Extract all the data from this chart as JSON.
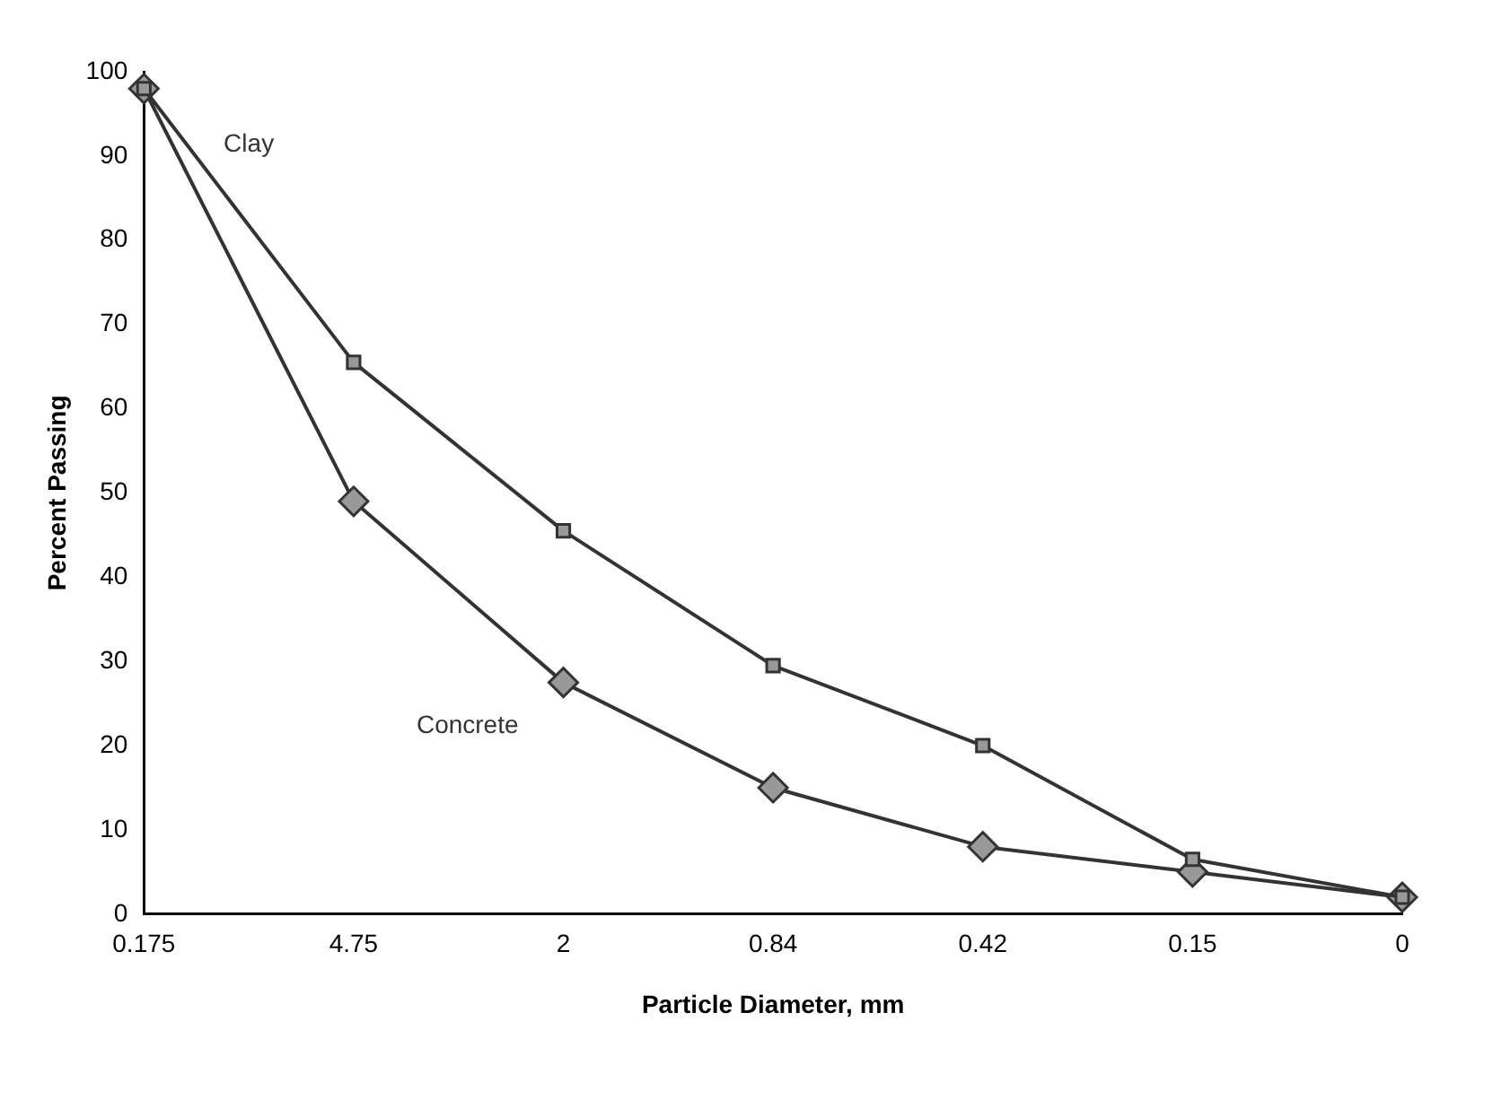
{
  "chart_data": {
    "type": "line",
    "xlabel": "Particle Diameter, mm",
    "ylabel": "Percent Passing",
    "categories": [
      "0.175",
      "4.75",
      "2",
      "0.84",
      "0.42",
      "0.15",
      "0"
    ],
    "series": [
      {
        "name": "Clay",
        "color": "#333333",
        "marker": "square",
        "values": [
          98,
          65.5,
          45.5,
          29.5,
          20,
          6.5,
          2
        ]
      },
      {
        "name": "Concrete",
        "color": "#333333",
        "marker": "diamond",
        "values": [
          98,
          49,
          27.5,
          15,
          8,
          5,
          2
        ]
      }
    ],
    "ylim": [
      0,
      100
    ],
    "yticks": [
      0,
      10,
      20,
      30,
      40,
      50,
      60,
      70,
      80,
      90,
      100
    ],
    "grid": false,
    "legend": false
  }
}
